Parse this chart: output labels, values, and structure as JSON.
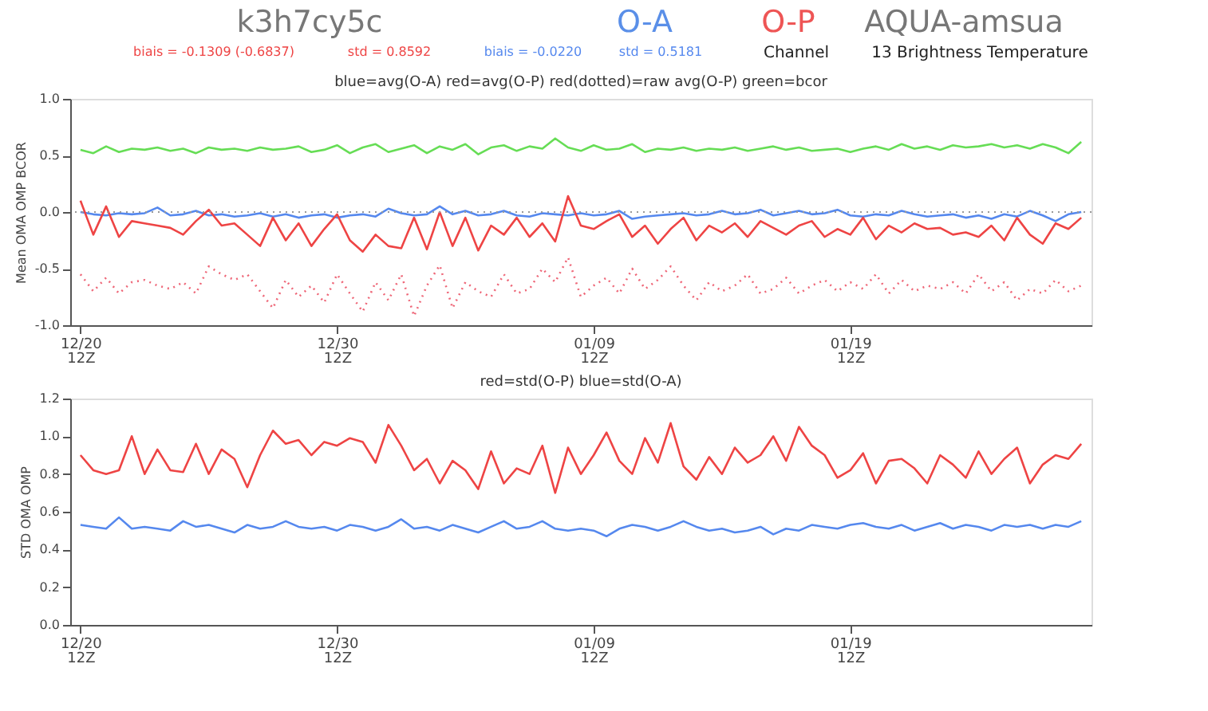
{
  "chart_data": [
    {
      "type": "line",
      "title": "k3h7cy5c",
      "subtitle": "blue=avg(O-A) red=avg(O-P) red(dotted)=raw avg(O-P) green=bcor",
      "ylabel": "Mean OMA OMP BCOR",
      "annotations": [
        "O-A",
        "O-P",
        "AQUA-amsua",
        "biais = -0.1309 (-0.6837)",
        "std = 0.8592",
        "biais = -0.0220",
        "std = 0.5181",
        "Channel",
        "13 Brightness Temperature"
      ],
      "categories": [
        "12/20 12Z",
        null,
        null,
        null,
        null,
        null,
        null,
        null,
        null,
        null,
        null,
        null,
        null,
        null,
        null,
        null,
        null,
        null,
        null,
        null,
        "12/30 12Z",
        null,
        null,
        null,
        null,
        null,
        null,
        null,
        null,
        null,
        null,
        null,
        null,
        null,
        null,
        null,
        null,
        null,
        null,
        null,
        "01/09 12Z",
        null,
        null,
        null,
        null,
        null,
        null,
        null,
        null,
        null,
        null,
        null,
        null,
        null,
        null,
        null,
        null,
        null,
        null,
        null,
        "01/19 12Z",
        null,
        null,
        null,
        null,
        null,
        null,
        null,
        null,
        null,
        null,
        null,
        null,
        null,
        null,
        null,
        null,
        null,
        null
      ],
      "series": [
        {
          "color": "#66dd55",
          "line_style": "solid",
          "values": [
            0.55,
            0.52,
            0.58,
            0.53,
            0.56,
            0.55,
            0.57,
            0.54,
            0.56,
            0.52,
            0.57,
            0.55,
            0.56,
            0.54,
            0.57,
            0.55,
            0.56,
            0.58,
            0.53,
            0.55,
            0.59,
            0.52,
            0.57,
            0.6,
            0.53,
            0.56,
            0.59,
            0.52,
            0.58,
            0.55,
            0.6,
            0.51,
            0.57,
            0.59,
            0.54,
            0.58,
            0.56,
            0.65,
            0.57,
            0.54,
            0.59,
            0.55,
            0.56,
            0.6,
            0.53,
            0.56,
            0.55,
            0.57,
            0.54,
            0.56,
            0.55,
            0.57,
            0.54,
            0.56,
            0.58,
            0.55,
            0.57,
            0.54,
            0.55,
            0.56,
            0.53,
            0.56,
            0.58,
            0.55,
            0.6,
            0.56,
            0.58,
            0.55,
            0.59,
            0.57,
            0.58,
            0.6,
            0.57,
            0.59,
            0.56,
            0.6,
            0.57,
            0.52,
            0.62
          ]
        },
        {
          "color": "#5588ee",
          "line_style": "solid",
          "values": [
            0.0,
            -0.02,
            -0.03,
            -0.01,
            -0.02,
            -0.01,
            0.04,
            -0.03,
            -0.02,
            0.01,
            -0.03,
            -0.02,
            -0.04,
            -0.03,
            -0.01,
            -0.04,
            -0.02,
            -0.05,
            -0.03,
            -0.02,
            -0.05,
            -0.03,
            -0.02,
            -0.04,
            0.03,
            -0.01,
            -0.03,
            -0.02,
            0.05,
            -0.02,
            0.01,
            -0.03,
            -0.02,
            0.01,
            -0.03,
            -0.04,
            -0.01,
            -0.02,
            -0.03,
            -0.01,
            -0.03,
            -0.02,
            0.01,
            -0.06,
            -0.04,
            -0.03,
            -0.02,
            -0.01,
            -0.03,
            -0.02,
            0.01,
            -0.02,
            -0.01,
            0.02,
            -0.03,
            -0.01,
            0.01,
            -0.02,
            -0.01,
            0.02,
            -0.03,
            -0.04,
            -0.02,
            -0.03,
            0.01,
            -0.02,
            -0.04,
            -0.03,
            -0.02,
            -0.05,
            -0.03,
            -0.06,
            -0.02,
            -0.04,
            0.01,
            -0.03,
            -0.08,
            -0.02,
            0.0
          ]
        },
        {
          "color": "#ee4444",
          "line_style": "solid",
          "values": [
            0.1,
            -0.2,
            0.05,
            -0.22,
            -0.08,
            -0.1,
            -0.12,
            -0.14,
            -0.2,
            -0.08,
            0.02,
            -0.12,
            -0.1,
            -0.2,
            -0.3,
            -0.05,
            -0.25,
            -0.1,
            -0.3,
            -0.15,
            -0.02,
            -0.25,
            -0.35,
            -0.2,
            -0.3,
            -0.32,
            -0.05,
            -0.33,
            0.0,
            -0.3,
            -0.05,
            -0.34,
            -0.12,
            -0.2,
            -0.05,
            -0.22,
            -0.1,
            -0.26,
            0.14,
            -0.12,
            -0.15,
            -0.08,
            -0.02,
            -0.22,
            -0.12,
            -0.28,
            -0.15,
            -0.05,
            -0.25,
            -0.12,
            -0.18,
            -0.1,
            -0.22,
            -0.08,
            -0.14,
            -0.2,
            -0.12,
            -0.08,
            -0.22,
            -0.15,
            -0.2,
            -0.05,
            -0.24,
            -0.12,
            -0.18,
            -0.1,
            -0.15,
            -0.14,
            -0.2,
            -0.18,
            -0.22,
            -0.12,
            -0.25,
            -0.05,
            -0.2,
            -0.28,
            -0.1,
            -0.15,
            -0.05
          ]
        },
        {
          "color": "#ee6677",
          "line_style": "dotted",
          "values": [
            -0.55,
            -0.7,
            -0.58,
            -0.72,
            -0.62,
            -0.6,
            -0.65,
            -0.68,
            -0.62,
            -0.72,
            -0.48,
            -0.55,
            -0.6,
            -0.55,
            -0.7,
            -0.85,
            -0.6,
            -0.75,
            -0.65,
            -0.8,
            -0.55,
            -0.72,
            -0.88,
            -0.62,
            -0.78,
            -0.55,
            -0.92,
            -0.65,
            -0.47,
            -0.85,
            -0.62,
            -0.7,
            -0.75,
            -0.55,
            -0.72,
            -0.68,
            -0.5,
            -0.62,
            -0.4,
            -0.75,
            -0.65,
            -0.58,
            -0.72,
            -0.5,
            -0.68,
            -0.6,
            -0.48,
            -0.65,
            -0.78,
            -0.62,
            -0.7,
            -0.65,
            -0.55,
            -0.72,
            -0.68,
            -0.58,
            -0.72,
            -0.65,
            -0.6,
            -0.7,
            -0.62,
            -0.68,
            -0.55,
            -0.72,
            -0.6,
            -0.7,
            -0.65,
            -0.68,
            -0.62,
            -0.72,
            -0.55,
            -0.7,
            -0.62,
            -0.78,
            -0.68,
            -0.72,
            -0.6,
            -0.7,
            -0.65
          ]
        }
      ],
      "ref_lines": [
        {
          "axis": "y",
          "value": 0,
          "color": "#999999",
          "line_style": "dotted"
        }
      ],
      "ylim": [
        -1,
        1
      ],
      "yticks": [
        {
          "value": -1,
          "label": "-1.0"
        },
        {
          "value": -0.5,
          "label": "-0.5"
        },
        {
          "value": 0,
          "label": "0.0"
        },
        {
          "value": 0.5,
          "label": "0.5"
        },
        {
          "value": 1,
          "label": "1.0"
        }
      ],
      "grid": false
    },
    {
      "type": "line",
      "subtitle": "red=std(O-P) blue=std(O-A)",
      "ylabel": "STD OMA OMP",
      "categories": [
        "12/20 12Z",
        null,
        null,
        null,
        null,
        null,
        null,
        null,
        null,
        null,
        null,
        null,
        null,
        null,
        null,
        null,
        null,
        null,
        null,
        null,
        "12/30 12Z",
        null,
        null,
        null,
        null,
        null,
        null,
        null,
        null,
        null,
        null,
        null,
        null,
        null,
        null,
        null,
        null,
        null,
        null,
        null,
        "01/09 12Z",
        null,
        null,
        null,
        null,
        null,
        null,
        null,
        null,
        null,
        null,
        null,
        null,
        null,
        null,
        null,
        null,
        null,
        null,
        null,
        "01/19 12Z",
        null,
        null,
        null,
        null,
        null,
        null,
        null,
        null,
        null,
        null,
        null,
        null,
        null,
        null,
        null,
        null,
        null,
        null
      ],
      "series": [
        {
          "color": "#ee4444",
          "line_style": "solid",
          "values": [
            0.9,
            0.82,
            0.8,
            0.82,
            1.0,
            0.8,
            0.93,
            0.82,
            0.81,
            0.96,
            0.8,
            0.93,
            0.88,
            0.73,
            0.9,
            1.03,
            0.96,
            0.98,
            0.9,
            0.97,
            0.95,
            0.99,
            0.97,
            0.86,
            1.06,
            0.95,
            0.82,
            0.88,
            0.75,
            0.87,
            0.82,
            0.72,
            0.92,
            0.75,
            0.83,
            0.8,
            0.95,
            0.7,
            0.94,
            0.8,
            0.9,
            1.02,
            0.87,
            0.8,
            0.99,
            0.86,
            1.07,
            0.84,
            0.77,
            0.89,
            0.8,
            0.94,
            0.86,
            0.9,
            1.0,
            0.87,
            1.05,
            0.95,
            0.9,
            0.78,
            0.82,
            0.91,
            0.75,
            0.87,
            0.88,
            0.83,
            0.75,
            0.9,
            0.85,
            0.78,
            0.92,
            0.8,
            0.88,
            0.94,
            0.75,
            0.85,
            0.9,
            0.88,
            0.96
          ]
        },
        {
          "color": "#5588ee",
          "line_style": "solid",
          "values": [
            0.53,
            0.52,
            0.51,
            0.57,
            0.51,
            0.52,
            0.51,
            0.5,
            0.55,
            0.52,
            0.53,
            0.51,
            0.49,
            0.53,
            0.51,
            0.52,
            0.55,
            0.52,
            0.51,
            0.52,
            0.5,
            0.53,
            0.52,
            0.5,
            0.52,
            0.56,
            0.51,
            0.52,
            0.5,
            0.53,
            0.51,
            0.49,
            0.52,
            0.55,
            0.51,
            0.52,
            0.55,
            0.51,
            0.5,
            0.51,
            0.5,
            0.47,
            0.51,
            0.53,
            0.52,
            0.5,
            0.52,
            0.55,
            0.52,
            0.5,
            0.51,
            0.49,
            0.5,
            0.52,
            0.48,
            0.51,
            0.5,
            0.53,
            0.52,
            0.51,
            0.53,
            0.54,
            0.52,
            0.51,
            0.53,
            0.5,
            0.52,
            0.54,
            0.51,
            0.53,
            0.52,
            0.5,
            0.53,
            0.52,
            0.53,
            0.51,
            0.53,
            0.52,
            0.55
          ]
        }
      ],
      "ylim": [
        0,
        1.2
      ],
      "yticks": [
        {
          "value": 0,
          "label": "0.0"
        },
        {
          "value": 0.2,
          "label": "0.2"
        },
        {
          "value": 0.4,
          "label": "0.4"
        },
        {
          "value": 0.6,
          "label": "0.6"
        },
        {
          "value": 0.8,
          "label": "0.8"
        },
        {
          "value": 1.0,
          "label": "1.0"
        },
        {
          "value": 1.2,
          "label": "1.2"
        }
      ],
      "grid": false
    }
  ]
}
